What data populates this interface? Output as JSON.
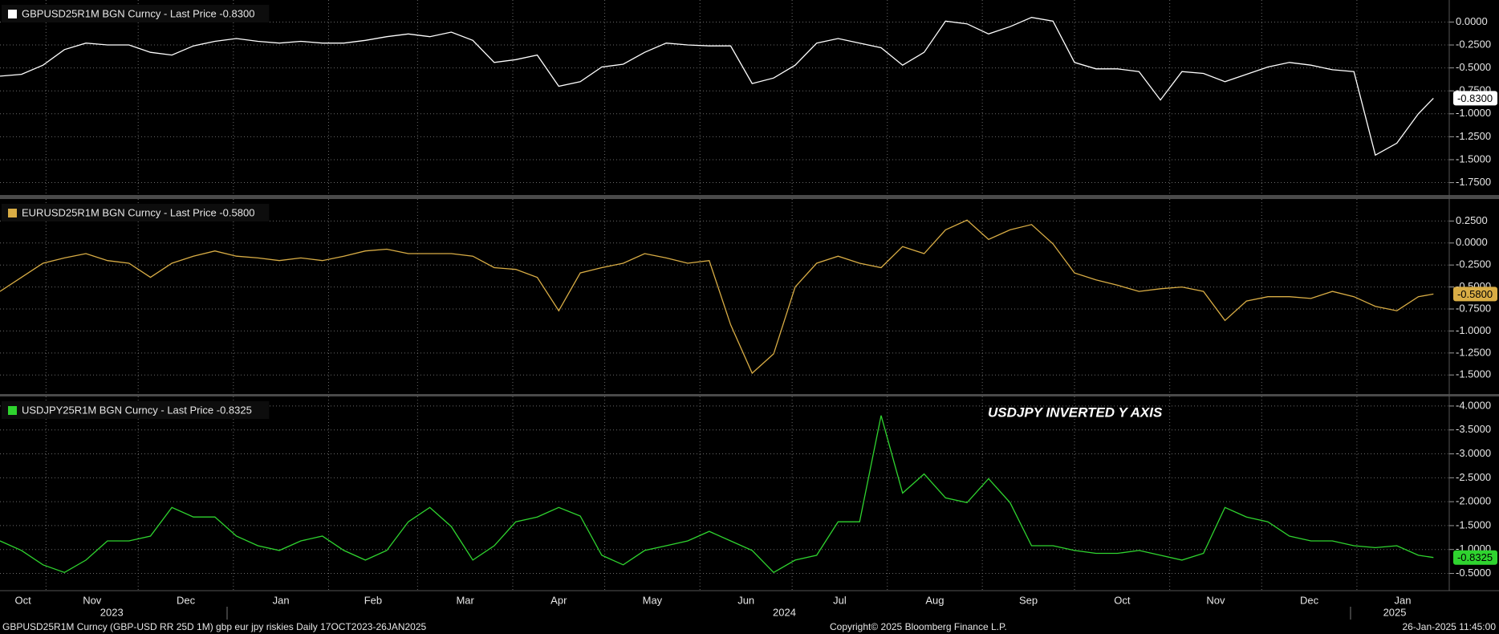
{
  "chart_data": [
    {
      "type": "line",
      "y_inverted": false,
      "ylim": [
        -1.885,
        0.24
      ],
      "yticks": [
        {
          "value": 0,
          "label": "0.0000"
        },
        {
          "value": -0.25,
          "label": "-0.2500"
        },
        {
          "value": -0.5,
          "label": "-0.5000"
        },
        {
          "value": -0.75,
          "label": "-0.7500"
        },
        {
          "value": -1,
          "label": "-1.0000"
        },
        {
          "value": -1.25,
          "label": "-1.2500"
        },
        {
          "value": -1.5,
          "label": "-1.5000"
        },
        {
          "value": -1.75,
          "label": "-1.7500"
        }
      ],
      "series": [
        {
          "name": "GBPUSD25R1M BGN Curncy - Last Price -0.8300",
          "color": "#ffffff",
          "last_price_label": "-0.8300",
          "x": [
            0,
            1,
            2,
            3,
            4,
            5,
            6,
            7,
            8,
            9,
            10,
            11,
            12,
            13,
            14,
            15,
            16,
            17,
            18,
            19,
            20,
            21,
            22,
            23,
            24,
            25,
            26,
            27,
            28,
            29,
            30,
            31,
            32,
            33,
            34,
            35,
            36,
            37,
            38,
            39,
            40,
            41,
            42,
            43,
            44,
            45,
            46,
            47,
            48,
            49,
            50,
            51,
            52,
            53,
            54,
            55,
            56,
            57,
            58,
            59,
            60,
            61,
            62,
            63,
            64,
            65,
            66,
            66.7
          ],
          "values": [
            -0.59,
            -0.57,
            -0.47,
            -0.3,
            -0.23,
            -0.25,
            -0.25,
            -0.33,
            -0.36,
            -0.26,
            -0.21,
            -0.18,
            -0.21,
            -0.23,
            -0.21,
            -0.23,
            -0.23,
            -0.2,
            -0.16,
            -0.13,
            -0.16,
            -0.11,
            -0.2,
            -0.44,
            -0.41,
            -0.36,
            -0.7,
            -0.65,
            -0.49,
            -0.46,
            -0.33,
            -0.23,
            -0.25,
            -0.26,
            -0.26,
            -0.67,
            -0.61,
            -0.47,
            -0.23,
            -0.18,
            -0.23,
            -0.28,
            -0.47,
            -0.33,
            0.01,
            -0.02,
            -0.13,
            -0.05,
            0.05,
            0.01,
            -0.44,
            -0.51,
            -0.51,
            -0.54,
            -0.85,
            -0.54,
            -0.56,
            -0.65,
            -0.57,
            -0.49,
            -0.44,
            -0.47,
            -0.52,
            -0.54,
            -1.45,
            -1.32,
            -1.0,
            -0.83
          ]
        }
      ]
    },
    {
      "type": "line",
      "y_inverted": false,
      "ylim": [
        -1.717,
        0.5
      ],
      "yticks": [
        {
          "value": 0.25,
          "label": "0.2500"
        },
        {
          "value": 0,
          "label": "0.0000"
        },
        {
          "value": -0.25,
          "label": "-0.2500"
        },
        {
          "value": -0.5,
          "label": "-0.5000"
        },
        {
          "value": -0.75,
          "label": "-0.7500"
        },
        {
          "value": -1,
          "label": "-1.0000"
        },
        {
          "value": -1.25,
          "label": "-1.2500"
        },
        {
          "value": -1.5,
          "label": "-1.5000"
        }
      ],
      "series": [
        {
          "name": "EURUSD25R1M BGN Curncy - Last Price -0.5800",
          "color": "#d9ad45",
          "last_price_label": "-0.5800",
          "x": [
            0,
            1,
            2,
            3,
            4,
            5,
            6,
            7,
            8,
            9,
            10,
            11,
            12,
            13,
            14,
            15,
            16,
            17,
            18,
            19,
            20,
            21,
            22,
            23,
            24,
            25,
            26,
            27,
            28,
            29,
            30,
            31,
            32,
            33,
            34,
            35,
            36,
            37,
            38,
            39,
            40,
            41,
            42,
            43,
            44,
            45,
            46,
            47,
            48,
            49,
            50,
            51,
            52,
            53,
            54,
            55,
            56,
            57,
            58,
            59,
            60,
            61,
            62,
            63,
            64,
            65,
            66,
            66.7
          ],
          "values": [
            -0.55,
            -0.39,
            -0.23,
            -0.17,
            -0.12,
            -0.2,
            -0.23,
            -0.39,
            -0.23,
            -0.15,
            -0.09,
            -0.15,
            -0.17,
            -0.2,
            -0.17,
            -0.2,
            -0.15,
            -0.09,
            -0.07,
            -0.12,
            -0.12,
            -0.12,
            -0.15,
            -0.28,
            -0.3,
            -0.39,
            -0.77,
            -0.34,
            -0.28,
            -0.23,
            -0.12,
            -0.17,
            -0.23,
            -0.2,
            -0.93,
            -1.48,
            -1.26,
            -0.5,
            -0.23,
            -0.15,
            -0.23,
            -0.28,
            -0.04,
            -0.12,
            0.15,
            0.26,
            0.04,
            0.15,
            0.21,
            -0.01,
            -0.34,
            -0.42,
            -0.48,
            -0.55,
            -0.52,
            -0.5,
            -0.55,
            -0.88,
            -0.66,
            -0.61,
            -0.61,
            -0.63,
            -0.55,
            -0.61,
            -0.72,
            -0.77,
            -0.61,
            -0.58
          ]
        }
      ]
    },
    {
      "type": "line",
      "y_inverted": true,
      "annotation": "USDJPY INVERTED Y AXIS",
      "ylim": [
        -4.2,
        -0.14
      ],
      "yticks": [
        {
          "value": -4,
          "label": "-4.0000"
        },
        {
          "value": -3.5,
          "label": "-3.5000"
        },
        {
          "value": -3,
          "label": "-3.0000"
        },
        {
          "value": -2.5,
          "label": "-2.5000"
        },
        {
          "value": -2,
          "label": "-2.0000"
        },
        {
          "value": -1.5,
          "label": "-1.5000"
        },
        {
          "value": -1,
          "label": "-1.0000"
        },
        {
          "value": -0.5,
          "label": "-0.5000"
        }
      ],
      "xlim": [
        0,
        67.4
      ],
      "xticks": [
        {
          "value": -2.29,
          "label": "Oct"
        },
        {
          "value": 2.14,
          "label": "Nov"
        },
        {
          "value": 6.43,
          "label": "Dec"
        },
        {
          "value": 10.86,
          "label": "Jan"
        },
        {
          "value": 15.29,
          "label": "Feb"
        },
        {
          "value": 19.43,
          "label": "Mar"
        },
        {
          "value": 23.86,
          "label": "Apr"
        },
        {
          "value": 28.14,
          "label": "May"
        },
        {
          "value": 32.57,
          "label": "Jun"
        },
        {
          "value": 36.86,
          "label": "Jul"
        },
        {
          "value": 41.29,
          "label": "Aug"
        },
        {
          "value": 45.71,
          "label": "Sep"
        },
        {
          "value": 50.0,
          "label": "Oct"
        },
        {
          "value": 54.43,
          "label": "Nov"
        },
        {
          "value": 58.71,
          "label": "Dec"
        },
        {
          "value": 63.14,
          "label": "Jan"
        }
      ],
      "year_labels": [
        {
          "value": 5.2,
          "label": "2023"
        },
        {
          "value": 36.5,
          "label": "2024"
        },
        {
          "value": 64.9,
          "label": "2025"
        }
      ],
      "series": [
        {
          "name": "USDJPY25R1M BGN Curncy - Last Price -0.8325",
          "color": "#2fd42f",
          "last_price_label": "-0.8325",
          "x": [
            0,
            1,
            2,
            3,
            4,
            5,
            6,
            7,
            8,
            9,
            10,
            11,
            12,
            13,
            14,
            15,
            16,
            17,
            18,
            19,
            20,
            21,
            22,
            23,
            24,
            25,
            26,
            27,
            28,
            29,
            30,
            31,
            32,
            33,
            34,
            35,
            36,
            37,
            38,
            39,
            40,
            41,
            42,
            43,
            44,
            45,
            46,
            47,
            48,
            49,
            50,
            51,
            52,
            53,
            54,
            55,
            56,
            57,
            58,
            59,
            60,
            61,
            62,
            63,
            64,
            65,
            66,
            66.7
          ],
          "values": [
            -1.18,
            -0.98,
            -0.68,
            -0.52,
            -0.78,
            -1.18,
            -1.18,
            -1.28,
            -1.88,
            -1.68,
            -1.68,
            -1.28,
            -1.08,
            -0.98,
            -1.18,
            -1.28,
            -0.98,
            -0.78,
            -0.98,
            -1.58,
            -1.88,
            -1.48,
            -0.78,
            -1.08,
            -1.58,
            -1.68,
            -1.88,
            -1.7,
            -0.88,
            -0.68,
            -0.98,
            -1.08,
            -1.18,
            -1.38,
            -1.18,
            -0.98,
            -0.52,
            -0.78,
            -0.88,
            -1.58,
            -1.58,
            -3.8,
            -2.18,
            -2.58,
            -2.08,
            -1.98,
            -2.48,
            -1.98,
            -1.08,
            -1.08,
            -0.98,
            -0.92,
            -0.92,
            -0.98,
            -0.88,
            -0.78,
            -0.92,
            -1.88,
            -1.68,
            -1.58,
            -1.28,
            -1.18,
            -1.18,
            -1.08,
            -1.04,
            -1.08,
            -0.88,
            -0.8325
          ]
        }
      ]
    }
  ],
  "footer": {
    "left": "GBPUSD25R1M Curncy (GBP-USD RR 25D 1M) gbp eur jpy riskies  Daily 17OCT2023-26JAN2025",
    "center": "Copyright© 2025 Bloomberg Finance L.P.",
    "right": "26-Jan-2025 11:45:00"
  }
}
